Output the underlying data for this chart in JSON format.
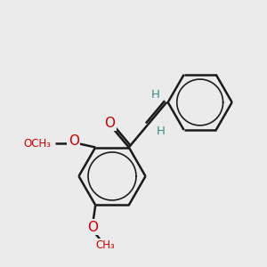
{
  "background_color": "#ebebeb",
  "bond_color": "#1a1a1a",
  "bond_width": 1.8,
  "atom_colors": {
    "O": "#cc0000",
    "H": "#3a8a8a"
  },
  "figsize": [
    3.0,
    3.0
  ],
  "dpi": 100,
  "xlim": [
    0,
    10
  ],
  "ylim": [
    0,
    10
  ]
}
